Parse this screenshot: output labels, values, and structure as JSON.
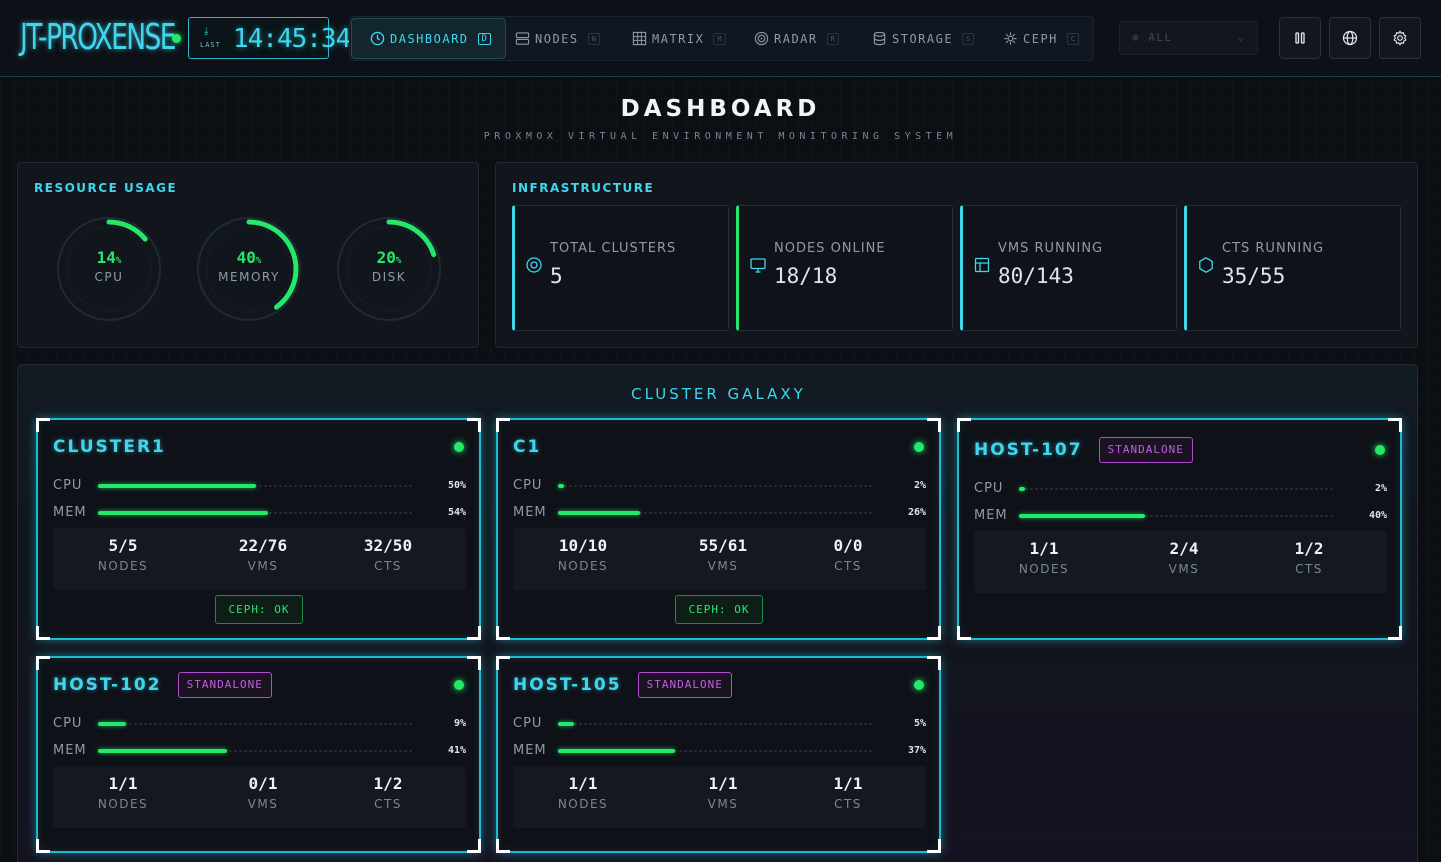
{
  "header": {
    "logo": "JT-PROXENSE",
    "clock_label": "LAST",
    "clock_time": "14:45:34",
    "nav": [
      {
        "label": "DASHBOARD",
        "key": "D",
        "icon": "clock-icon"
      },
      {
        "label": "NODES",
        "key": "N",
        "icon": "server-icon"
      },
      {
        "label": "MATRIX",
        "key": "M",
        "icon": "grid-icon"
      },
      {
        "label": "RADAR",
        "key": "R",
        "icon": "radar-icon"
      },
      {
        "label": "STORAGE",
        "key": "S",
        "icon": "database-icon"
      },
      {
        "label": "CEPH",
        "key": "C",
        "icon": "ceph-icon"
      }
    ],
    "filter_value": "ALL",
    "buttons": [
      "pause-icon",
      "globe-icon",
      "settings-icon"
    ]
  },
  "page": {
    "title": "DASHBOARD",
    "subtitle": "PROXMOX VIRTUAL ENVIRONMENT MONITORING SYSTEM"
  },
  "resource": {
    "title": "RESOURCE USAGE",
    "gauges": [
      {
        "label": "CPU",
        "value": "14",
        "unit": "%",
        "pct": 14
      },
      {
        "label": "MEMORY",
        "value": "40",
        "unit": "%",
        "pct": 40
      },
      {
        "label": "DISK",
        "value": "20",
        "unit": "%",
        "pct": 20
      }
    ]
  },
  "infra": {
    "title": "INFRASTRUCTURE",
    "stats": [
      {
        "label": "TOTAL CLUSTERS",
        "value": "5",
        "icon": "target-icon"
      },
      {
        "label": "NODES ONLINE",
        "value": "18/18",
        "icon": "monitor-icon"
      },
      {
        "label": "VMS RUNNING",
        "value": "80/143",
        "icon": "layout-icon"
      },
      {
        "label": "CTS RUNNING",
        "value": "35/55",
        "icon": "hexagon-icon"
      }
    ]
  },
  "galaxy": {
    "title": "CLUSTER GALAXY",
    "labels": {
      "cpu": "CPU",
      "mem": "MEM",
      "nodes": "NODES",
      "vms": "VMS",
      "cts": "CTS"
    },
    "cards": [
      {
        "name": "CLUSTER1",
        "tag": "",
        "cpu": 50,
        "cpu_text": "50%",
        "mem": 54,
        "mem_text": "54%",
        "nodes": "5/5",
        "vms": "22/76",
        "cts": "32/50",
        "ceph": "CEPH: OK"
      },
      {
        "name": "C1",
        "tag": "",
        "cpu": 2,
        "cpu_text": "2%",
        "mem": 26,
        "mem_text": "26%",
        "nodes": "10/10",
        "vms": "55/61",
        "cts": "0/0",
        "ceph": "CEPH: OK"
      },
      {
        "name": "HOST-107",
        "tag": "STANDALONE",
        "cpu": 2,
        "cpu_text": "2%",
        "mem": 40,
        "mem_text": "40%",
        "nodes": "1/1",
        "vms": "2/4",
        "cts": "1/2",
        "ceph": ""
      },
      {
        "name": "HOST-102",
        "tag": "STANDALONE",
        "cpu": 9,
        "cpu_text": "9%",
        "mem": 41,
        "mem_text": "41%",
        "nodes": "1/1",
        "vms": "0/1",
        "cts": "1/2",
        "ceph": ""
      },
      {
        "name": "HOST-105",
        "tag": "STANDALONE",
        "cpu": 5,
        "cpu_text": "5%",
        "mem": 37,
        "mem_text": "37%",
        "nodes": "1/1",
        "vms": "1/1",
        "cts": "1/1",
        "ceph": ""
      }
    ]
  },
  "colors": {
    "accent": "#3fd6ee",
    "ok": "#24e86a",
    "standalone": "#c05fe0"
  }
}
